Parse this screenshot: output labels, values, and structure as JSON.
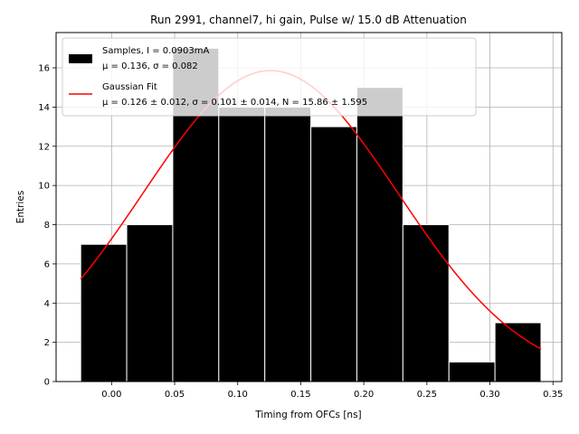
{
  "chart_data": {
    "type": "bar",
    "title": "Run 2991, channel7, hi gain, Pulse w/ 15.0 dB Attenuation",
    "xlabel": "Timing from OFCs [ns]",
    "ylabel": "Entries",
    "xlim": [
      -0.044,
      0.357
    ],
    "ylim": [
      0,
      17.8
    ],
    "xticks": [
      0.0,
      0.05,
      0.1,
      0.15,
      0.2,
      0.25,
      0.3,
      0.35
    ],
    "xtick_labels": [
      "0.00",
      "0.05",
      "0.10",
      "0.15",
      "0.20",
      "0.25",
      "0.30",
      "0.35"
    ],
    "yticks": [
      0,
      2,
      4,
      6,
      8,
      10,
      12,
      14,
      16
    ],
    "ytick_labels": [
      "0",
      "2",
      "4",
      "6",
      "8",
      "10",
      "12",
      "14",
      "16"
    ],
    "grid": true,
    "legend_position": "top-left",
    "bins": {
      "edges": [
        -0.0245,
        0.012,
        0.0485,
        0.085,
        0.1215,
        0.158,
        0.1945,
        0.231,
        0.2675,
        0.304,
        0.3405
      ],
      "counts": [
        7,
        8,
        17,
        14,
        14,
        13,
        15,
        8,
        1,
        3
      ],
      "color": "#000000",
      "edgecolor": "#ffffff"
    },
    "fit": {
      "mu": 0.126,
      "sigma": 0.101,
      "N": 15.86,
      "x_range": [
        -0.0245,
        0.3405
      ],
      "color": "#ff0000"
    },
    "legend": {
      "samples_line1": "Samples, I = 0.0903mA",
      "samples_line2": "μ = 0.136, σ = 0.082",
      "fit_line1": "Gaussian Fit",
      "fit_line2": "μ = 0.126 ± 0.012, σ = 0.101 ± 0.014, N = 15.86 ± 1.595"
    }
  }
}
